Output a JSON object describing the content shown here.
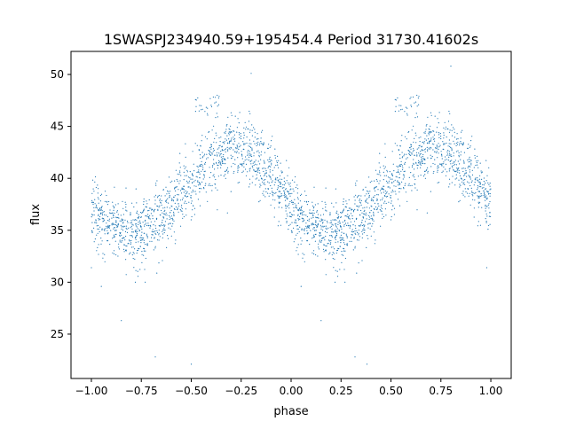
{
  "chart_data": {
    "type": "scatter",
    "title": "1SWASPJ234940.59+195454.4 Period 31730.41602s",
    "xlabel": "phase",
    "ylabel": "flux",
    "xlim": [
      -1.102,
      1.102
    ],
    "ylim": [
      20.73,
      52.22
    ],
    "grid": false,
    "legend": "none",
    "xticks": [
      -1.0,
      -0.75,
      -0.5,
      -0.25,
      0.0,
      0.25,
      0.5,
      0.75,
      1.0
    ],
    "xtick_labels": [
      "−1.00",
      "−0.75",
      "−0.50",
      "−0.25",
      "0.00",
      "0.25",
      "0.50",
      "0.75",
      "1.00"
    ],
    "yticks": [
      25,
      30,
      35,
      40,
      45,
      50
    ],
    "ytick_labels": [
      "25",
      "30",
      "35",
      "40",
      "45",
      "50"
    ],
    "point_color": "#1f77b4",
    "series": [
      {
        "name": "flux",
        "note": "phase-folded light curve, repeated with period 1 in phase",
        "mean_curve_phase": [
          0.0,
          0.1,
          0.2,
          0.3,
          0.4,
          0.5,
          0.6,
          0.7,
          0.8,
          0.9,
          1.0
        ],
        "mean_curve_flux": [
          37.4,
          35.4,
          34.5,
          35.3,
          37.2,
          39.6,
          41.8,
          43.0,
          42.3,
          40.3,
          37.4
        ],
        "scatter_spread": 2.2,
        "points_per_cycle": 1400,
        "outliers": [
          {
            "x": 0.55,
            "y": 47.0
          },
          {
            "x": 0.6,
            "y": 47.8
          },
          {
            "x": -0.45,
            "y": 47.0
          },
          {
            "x": -0.38,
            "y": 47.8
          },
          {
            "x": 0.8,
            "y": 50.8
          },
          {
            "x": -0.2,
            "y": 50.1
          },
          {
            "x": -0.68,
            "y": 22.8
          },
          {
            "x": 0.32,
            "y": 22.8
          },
          {
            "x": 0.38,
            "y": 22.1
          },
          {
            "x": -0.5,
            "y": 22.1
          },
          {
            "x": 0.22,
            "y": 30.0
          },
          {
            "x": -0.78,
            "y": 30.0
          },
          {
            "x": 0.15,
            "y": 26.3
          },
          {
            "x": -0.85,
            "y": 26.3
          },
          {
            "x": -0.95,
            "y": 29.6
          },
          {
            "x": 0.05,
            "y": 29.6
          },
          {
            "x": 0.98,
            "y": 31.4
          },
          {
            "x": -1.0,
            "y": 31.4
          }
        ]
      }
    ]
  }
}
